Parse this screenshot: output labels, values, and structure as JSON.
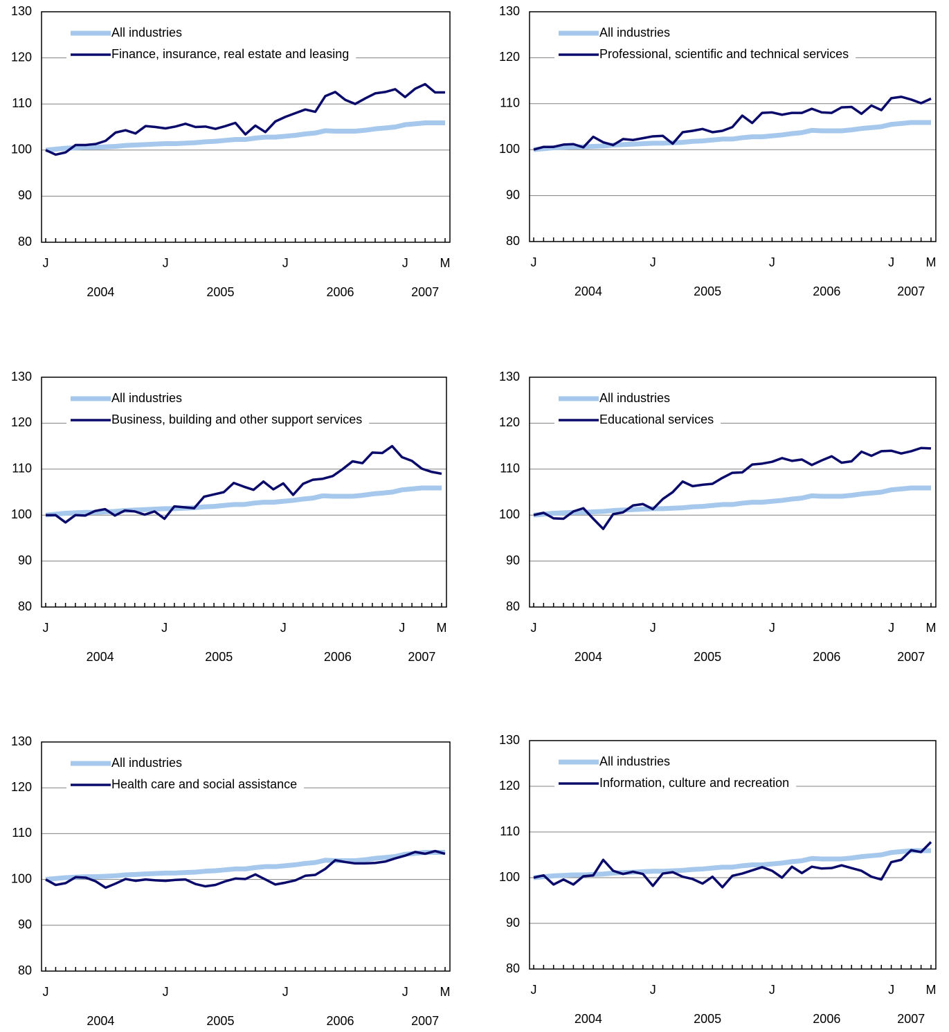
{
  "chart_data": [
    {
      "type": "line",
      "ylim": [
        80,
        130
      ],
      "yticks": [
        80,
        90,
        100,
        110,
        120,
        130
      ],
      "grid": true,
      "categories": [
        "J",
        null,
        null,
        null,
        null,
        null,
        null,
        null,
        null,
        null,
        null,
        null,
        "J",
        null,
        null,
        null,
        null,
        null,
        null,
        null,
        null,
        null,
        null,
        null,
        "J",
        null,
        null,
        null,
        null,
        null,
        null,
        null,
        null,
        null,
        null,
        null,
        "J",
        null,
        null,
        null,
        "M"
      ],
      "year_labels": [
        "2004",
        "2005",
        "2006",
        "2007"
      ],
      "series": [
        {
          "name": "All industries",
          "color": "#a6c8ec",
          "values": [
            100,
            100.2,
            100.4,
            100.5,
            100.6,
            100.6,
            100.7,
            100.8,
            101.0,
            101.1,
            101.2,
            101.3,
            101.4,
            101.4,
            101.5,
            101.6,
            101.8,
            101.9,
            102.1,
            102.3,
            102.3,
            102.6,
            102.8,
            102.8,
            103.0,
            103.2,
            103.5,
            103.7,
            104.2,
            104.1,
            104.1,
            104.1,
            104.3,
            104.6,
            104.8,
            105.0,
            105.5,
            105.7,
            105.9,
            105.9,
            105.9
          ]
        },
        {
          "name": "Finance, insurance, real estate and leasing",
          "color": "#0a0a6b",
          "values": [
            100,
            99,
            99.5,
            101.1,
            101.1,
            101.3,
            102,
            103.8,
            104.3,
            103.6,
            105.2,
            105.0,
            104.7,
            105.1,
            105.7,
            105.0,
            105.1,
            104.6,
            105.2,
            105.9,
            103.4,
            105.3,
            103.9,
            106.2,
            107.2,
            108.0,
            108.8,
            108.3,
            111.7,
            112.6,
            110.9,
            110.0,
            111.2,
            112.3,
            112.6,
            113.2,
            111.5,
            113.3,
            114.3,
            112.5,
            112.5
          ]
        }
      ]
    },
    {
      "type": "line",
      "ylim": [
        80,
        130
      ],
      "yticks": [
        80,
        90,
        100,
        110,
        120,
        130
      ],
      "grid": true,
      "categories": [
        "J",
        null,
        null,
        null,
        null,
        null,
        null,
        null,
        null,
        null,
        null,
        null,
        "J",
        null,
        null,
        null,
        null,
        null,
        null,
        null,
        null,
        null,
        null,
        null,
        "J",
        null,
        null,
        null,
        null,
        null,
        null,
        null,
        null,
        null,
        null,
        null,
        "J",
        null,
        null,
        null,
        "M"
      ],
      "year_labels": [
        "2004",
        "2005",
        "2006",
        "2007"
      ],
      "series": [
        {
          "name": "All industries",
          "color": "#a6c8ec",
          "values": [
            100,
            100.2,
            100.4,
            100.5,
            100.6,
            100.6,
            100.7,
            100.8,
            101.0,
            101.1,
            101.2,
            101.3,
            101.4,
            101.4,
            101.5,
            101.6,
            101.8,
            101.9,
            102.1,
            102.3,
            102.3,
            102.6,
            102.8,
            102.8,
            103.0,
            103.2,
            103.5,
            103.7,
            104.2,
            104.1,
            104.1,
            104.1,
            104.3,
            104.6,
            104.8,
            105.0,
            105.5,
            105.7,
            105.9,
            105.9,
            105.9
          ]
        },
        {
          "name": "Professional, scientific and technical services",
          "color": "#0a0a6b",
          "values": [
            100,
            100.6,
            100.6,
            101.1,
            101.2,
            100.5,
            102.8,
            101.6,
            101.0,
            102.3,
            102.1,
            102.5,
            102.9,
            103.0,
            101.3,
            103.8,
            104.1,
            104.5,
            103.8,
            104.1,
            104.9,
            107.4,
            105.8,
            108.0,
            108.1,
            107.6,
            108.0,
            108.0,
            108.9,
            108.1,
            108.0,
            109.2,
            109.3,
            107.8,
            109.6,
            108.6,
            111.2,
            111.5,
            110.9,
            110.1,
            111.1
          ]
        }
      ]
    },
    {
      "type": "line",
      "ylim": [
        80,
        130
      ],
      "yticks": [
        80,
        90,
        100,
        110,
        120,
        130
      ],
      "grid": true,
      "categories": [
        "J",
        null,
        null,
        null,
        null,
        null,
        null,
        null,
        null,
        null,
        null,
        null,
        "J",
        null,
        null,
        null,
        null,
        null,
        null,
        null,
        null,
        null,
        null,
        null,
        "J",
        null,
        null,
        null,
        null,
        null,
        null,
        null,
        null,
        null,
        null,
        null,
        "J",
        null,
        null,
        null,
        "M"
      ],
      "year_labels": [
        "2004",
        "2005",
        "2006",
        "2007"
      ],
      "series": [
        {
          "name": "All industries",
          "color": "#a6c8ec",
          "values": [
            100,
            100.2,
            100.4,
            100.5,
            100.6,
            100.6,
            100.7,
            100.8,
            101.0,
            101.1,
            101.2,
            101.3,
            101.4,
            101.4,
            101.5,
            101.6,
            101.8,
            101.9,
            102.1,
            102.3,
            102.3,
            102.6,
            102.8,
            102.8,
            103.0,
            103.2,
            103.5,
            103.7,
            104.2,
            104.1,
            104.1,
            104.1,
            104.3,
            104.6,
            104.8,
            105.0,
            105.5,
            105.7,
            105.9,
            105.9,
            105.9
          ]
        },
        {
          "name": "Business, building and other support services",
          "color": "#0a0a6b",
          "values": [
            100,
            100,
            98.4,
            100,
            99.9,
            100.9,
            101.3,
            99.9,
            101.0,
            100.8,
            100.1,
            100.8,
            99.2,
            101.9,
            101.7,
            101.5,
            104.0,
            104.5,
            105.0,
            107.0,
            106.2,
            105.5,
            107.3,
            105.6,
            106.9,
            104.4,
            106.8,
            107.7,
            107.9,
            108.5,
            110.0,
            111.7,
            111.3,
            113.6,
            113.5,
            115.0,
            112.6,
            111.8,
            110.1,
            109.4,
            109.0
          ]
        }
      ]
    },
    {
      "type": "line",
      "ylim": [
        80,
        130
      ],
      "yticks": [
        80,
        90,
        100,
        110,
        120,
        130
      ],
      "grid": true,
      "categories": [
        "J",
        null,
        null,
        null,
        null,
        null,
        null,
        null,
        null,
        null,
        null,
        null,
        "J",
        null,
        null,
        null,
        null,
        null,
        null,
        null,
        null,
        null,
        null,
        null,
        "J",
        null,
        null,
        null,
        null,
        null,
        null,
        null,
        null,
        null,
        null,
        null,
        "J",
        null,
        null,
        null,
        "M"
      ],
      "year_labels": [
        "2004",
        "2005",
        "2006",
        "2007"
      ],
      "series": [
        {
          "name": "All industries",
          "color": "#a6c8ec",
          "values": [
            100,
            100.2,
            100.4,
            100.5,
            100.6,
            100.6,
            100.7,
            100.8,
            101.0,
            101.1,
            101.2,
            101.3,
            101.4,
            101.4,
            101.5,
            101.6,
            101.8,
            101.9,
            102.1,
            102.3,
            102.3,
            102.6,
            102.8,
            102.8,
            103.0,
            103.2,
            103.5,
            103.7,
            104.2,
            104.1,
            104.1,
            104.1,
            104.3,
            104.6,
            104.8,
            105.0,
            105.5,
            105.7,
            105.9,
            105.9,
            105.9
          ]
        },
        {
          "name": "Educational services",
          "color": "#0a0a6b",
          "values": [
            100,
            100.5,
            99.3,
            99.2,
            100.8,
            101.5,
            99.2,
            97.0,
            100.2,
            100.6,
            102.1,
            102.4,
            101.3,
            103.5,
            105.0,
            107.3,
            106.3,
            106.6,
            106.8,
            108.1,
            109.2,
            109.3,
            111.0,
            111.2,
            111.6,
            112.4,
            111.8,
            112.1,
            110.9,
            111.9,
            112.8,
            111.4,
            111.7,
            113.8,
            112.9,
            113.9,
            114.0,
            113.4,
            113.9,
            114.6,
            114.5
          ]
        }
      ]
    },
    {
      "type": "line",
      "ylim": [
        80,
        130
      ],
      "yticks": [
        80,
        90,
        100,
        110,
        120,
        130
      ],
      "grid": true,
      "categories": [
        "J",
        null,
        null,
        null,
        null,
        null,
        null,
        null,
        null,
        null,
        null,
        null,
        "J",
        null,
        null,
        null,
        null,
        null,
        null,
        null,
        null,
        null,
        null,
        null,
        "J",
        null,
        null,
        null,
        null,
        null,
        null,
        null,
        null,
        null,
        null,
        null,
        "J",
        null,
        null,
        null,
        "M"
      ],
      "year_labels": [
        "2004",
        "2005",
        "2006",
        "2007"
      ],
      "series": [
        {
          "name": "All industries",
          "color": "#a6c8ec",
          "values": [
            100,
            100.2,
            100.4,
            100.5,
            100.6,
            100.6,
            100.7,
            100.8,
            101.0,
            101.1,
            101.2,
            101.3,
            101.4,
            101.4,
            101.5,
            101.6,
            101.8,
            101.9,
            102.1,
            102.3,
            102.3,
            102.6,
            102.8,
            102.8,
            103.0,
            103.2,
            103.5,
            103.7,
            104.2,
            104.1,
            104.1,
            104.1,
            104.3,
            104.6,
            104.8,
            105.0,
            105.5,
            105.7,
            105.9,
            105.9,
            105.9
          ]
        },
        {
          "name": "Health care and social assistance",
          "color": "#0a0a6b",
          "values": [
            100,
            98.8,
            99.2,
            100.5,
            100.4,
            99.6,
            98.2,
            99.1,
            100.1,
            99.7,
            100.0,
            99.8,
            99.7,
            99.9,
            100.0,
            99.0,
            98.5,
            98.8,
            99.6,
            100.2,
            100.1,
            101.1,
            100.0,
            98.9,
            99.3,
            99.8,
            100.8,
            101.0,
            102.3,
            104.2,
            103.8,
            103.5,
            103.5,
            103.6,
            103.9,
            104.6,
            105.2,
            106.0,
            105.6,
            106.2,
            105.6
          ]
        }
      ]
    },
    {
      "type": "line",
      "ylim": [
        80,
        130
      ],
      "yticks": [
        80,
        90,
        100,
        110,
        120,
        130
      ],
      "grid": true,
      "categories": [
        "J",
        null,
        null,
        null,
        null,
        null,
        null,
        null,
        null,
        null,
        null,
        null,
        "J",
        null,
        null,
        null,
        null,
        null,
        null,
        null,
        null,
        null,
        null,
        null,
        "J",
        null,
        null,
        null,
        null,
        null,
        null,
        null,
        null,
        null,
        null,
        null,
        "J",
        null,
        null,
        null,
        "M"
      ],
      "year_labels": [
        "2004",
        "2005",
        "2006",
        "2007"
      ],
      "series": [
        {
          "name": "All industries",
          "color": "#a6c8ec",
          "values": [
            100,
            100.2,
            100.4,
            100.5,
            100.6,
            100.6,
            100.7,
            100.8,
            101.0,
            101.1,
            101.2,
            101.3,
            101.4,
            101.4,
            101.5,
            101.6,
            101.8,
            101.9,
            102.1,
            102.3,
            102.3,
            102.6,
            102.8,
            102.8,
            103.0,
            103.2,
            103.5,
            103.7,
            104.2,
            104.1,
            104.1,
            104.1,
            104.3,
            104.6,
            104.8,
            105.0,
            105.5,
            105.7,
            105.9,
            105.9,
            105.9
          ]
        },
        {
          "name": "Information, culture and recreation",
          "color": "#0a0a6b",
          "values": [
            100,
            100.5,
            98.5,
            99.6,
            98.5,
            100.3,
            100.5,
            103.9,
            101.5,
            100.8,
            101.3,
            100.8,
            98.2,
            100.9,
            101.2,
            100.2,
            99.7,
            98.7,
            100.2,
            97.9,
            100.4,
            100.9,
            101.6,
            102.3,
            101.5,
            100.0,
            102.4,
            101.0,
            102.4,
            102.0,
            102.1,
            102.7,
            102.1,
            101.5,
            100.2,
            99.6,
            103.4,
            103.9,
            106.0,
            105.6,
            107.8
          ]
        }
      ]
    }
  ]
}
